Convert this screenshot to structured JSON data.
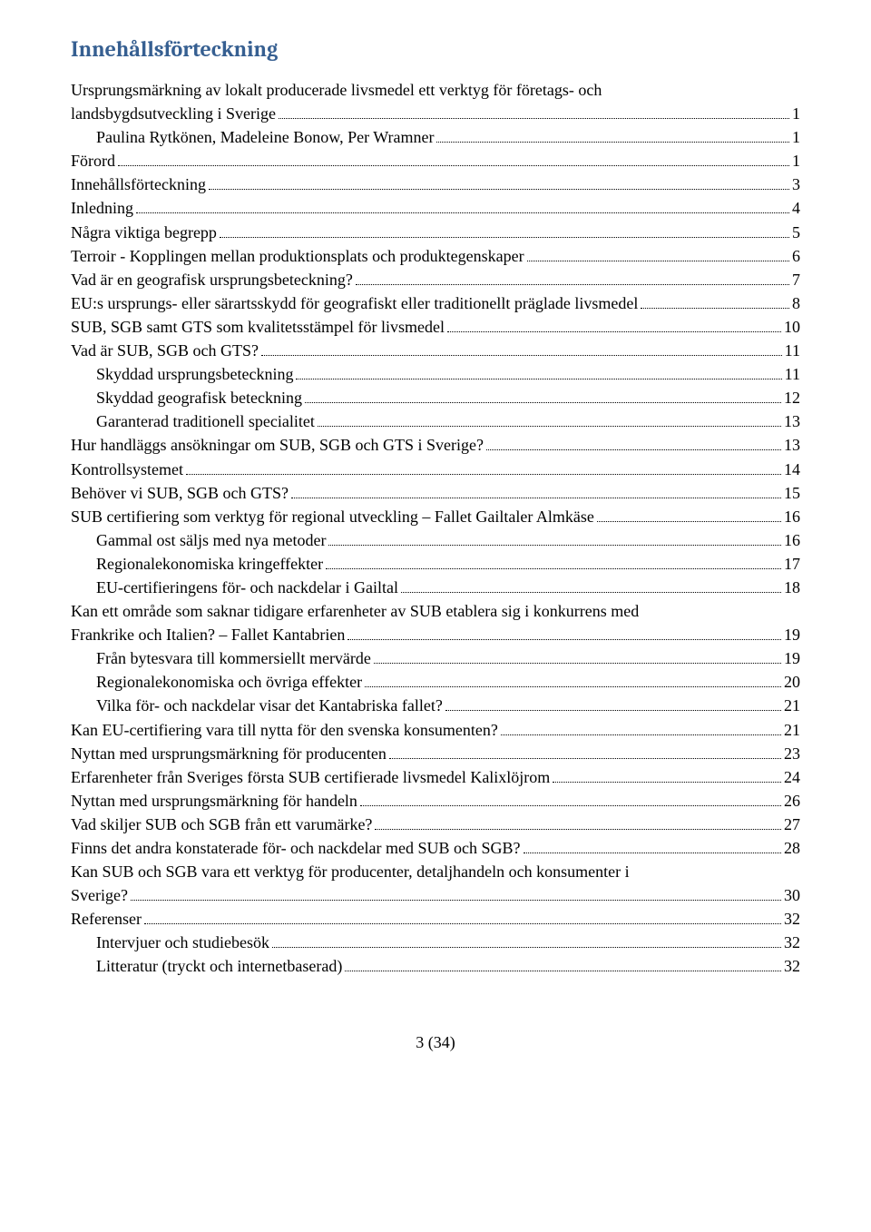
{
  "title": "Innehållsförteckning",
  "entries": [
    {
      "text": "Ursprungsmärkning av lokalt producerade livsmedel ett verktyg för företags- och landsbygdsutveckling i Sverige",
      "page": "1",
      "indent": 0,
      "wrap": true
    },
    {
      "text": "Paulina Rytkönen, Madeleine Bonow, Per Wramner",
      "page": "1",
      "indent": 1
    },
    {
      "text": "Förord",
      "page": "1",
      "indent": 0
    },
    {
      "text": "Innehållsförteckning",
      "page": "3",
      "indent": 0
    },
    {
      "text": "Inledning",
      "page": "4",
      "indent": 0
    },
    {
      "text": "Några viktiga begrepp",
      "page": "5",
      "indent": 0
    },
    {
      "text": "Terroir - Kopplingen mellan produktionsplats och produktegenskaper",
      "page": "6",
      "indent": 0
    },
    {
      "text": "Vad är en geografisk ursprungsbeteckning?",
      "page": "7",
      "indent": 0
    },
    {
      "text": "EU:s ursprungs- eller särartsskydd för geografiskt eller traditionellt präglade livsmedel",
      "page": "8",
      "indent": 0
    },
    {
      "text": "SUB, SGB samt GTS som kvalitetsstämpel för livsmedel",
      "page": "10",
      "indent": 0
    },
    {
      "text": "Vad är SUB, SGB och GTS?",
      "page": "11",
      "indent": 0
    },
    {
      "text": "Skyddad ursprungsbeteckning",
      "page": "11",
      "indent": 1
    },
    {
      "text": "Skyddad geografisk beteckning",
      "page": "12",
      "indent": 1
    },
    {
      "text": "Garanterad traditionell specialitet",
      "page": "13",
      "indent": 1
    },
    {
      "text": "Hur handläggs ansökningar om SUB, SGB och GTS i Sverige?",
      "page": "13",
      "indent": 0
    },
    {
      "text": "Kontrollsystemet",
      "page": "14",
      "indent": 0
    },
    {
      "text": "Behöver vi SUB, SGB och GTS?",
      "page": "15",
      "indent": 0
    },
    {
      "text": "SUB certifiering som verktyg för regional utveckling – Fallet Gailtaler Almkäse",
      "page": "16",
      "indent": 0
    },
    {
      "text": "Gammal ost säljs med nya metoder",
      "page": "16",
      "indent": 1
    },
    {
      "text": "Regionalekonomiska kringeffekter",
      "page": "17",
      "indent": 1
    },
    {
      "text": "EU-certifieringens för- och nackdelar i Gailtal",
      "page": "18",
      "indent": 1
    },
    {
      "text": "Kan ett område som saknar tidigare erfarenheter av SUB etablera sig i konkurrens med Frankrike och Italien? – Fallet Kantabrien",
      "page": "19",
      "indent": 0,
      "wrap": true
    },
    {
      "text": "Från bytesvara till kommersiellt mervärde",
      "page": "19",
      "indent": 1
    },
    {
      "text": "Regionalekonomiska och övriga effekter",
      "page": "20",
      "indent": 1
    },
    {
      "text": "Vilka för- och nackdelar visar det Kantabriska fallet?",
      "page": "21",
      "indent": 1
    },
    {
      "text": "Kan EU-certifiering vara till nytta för den svenska konsumenten?",
      "page": "21",
      "indent": 0
    },
    {
      "text": "Nyttan med ursprungsmärkning för producenten",
      "page": "23",
      "indent": 0
    },
    {
      "text": "Erfarenheter från Sveriges första SUB certifierade livsmedel Kalixlöjrom",
      "page": "24",
      "indent": 0
    },
    {
      "text": "Nyttan med ursprungsmärkning för handeln",
      "page": "26",
      "indent": 0
    },
    {
      "text": "Vad skiljer SUB och SGB från ett varumärke?",
      "page": "27",
      "indent": 0
    },
    {
      "text": "Finns det andra konstaterade för- och nackdelar med SUB och SGB?",
      "page": "28",
      "indent": 0
    },
    {
      "text": "Kan SUB och SGB vara ett verktyg för producenter, detaljhandeln och konsumenter i Sverige?",
      "page": "30",
      "indent": 0,
      "wrap": true
    },
    {
      "text": "Referenser",
      "page": "32",
      "indent": 0
    },
    {
      "text": "Intervjuer och studiebesök",
      "page": "32",
      "indent": 1
    },
    {
      "text": "Litteratur (tryckt och internetbaserad)",
      "page": "32",
      "indent": 1
    }
  ],
  "footer": "3 (34)",
  "wrap_splits": {
    "0": {
      "first": "Ursprungsmärkning av lokalt producerade livsmedel ett verktyg för företags- och",
      "last": "landsbygdsutveckling i Sverige"
    },
    "21": {
      "first": "Kan ett område som saknar tidigare erfarenheter av SUB etablera sig i konkurrens med",
      "last": "Frankrike och Italien? – Fallet Kantabrien"
    },
    "31": {
      "first": "Kan SUB och SGB vara ett verktyg för producenter, detaljhandeln och konsumenter i",
      "last": "Sverige?"
    }
  }
}
